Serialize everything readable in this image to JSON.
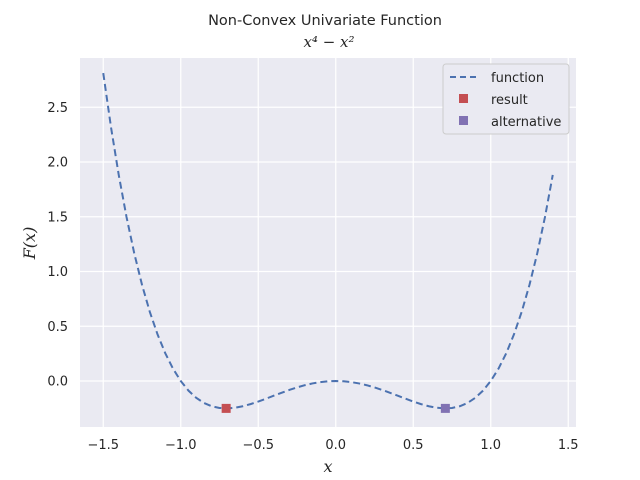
{
  "chart_data": {
    "type": "line",
    "title": "Non-Convex Univariate Function",
    "subtitle": "x⁴ − x²",
    "xlabel": "x",
    "ylabel": "F(x)",
    "xlim": [
      -1.65,
      1.55
    ],
    "ylim": [
      -0.42,
      2.95
    ],
    "xticks": [
      -1.5,
      -1.0,
      -0.5,
      0.0,
      0.5,
      1.0,
      1.5
    ],
    "xtick_labels": [
      "−1.5",
      "−1.0",
      "−0.5",
      "0.0",
      "0.5",
      "1.0",
      "1.5"
    ],
    "yticks": [
      0.0,
      0.5,
      1.0,
      1.5,
      2.0,
      2.5
    ],
    "ytick_labels": [
      "0.0",
      "0.5",
      "1.0",
      "1.5",
      "2.0",
      "2.5"
    ],
    "grid": true,
    "legend_position": "top-right",
    "series": [
      {
        "name": "function",
        "style": "dashed-line",
        "color": "#4c72b0",
        "x": [
          -1.5,
          -1.45,
          -1.4,
          -1.35,
          -1.3,
          -1.25,
          -1.2,
          -1.15,
          -1.1,
          -1.05,
          -1.0,
          -0.95,
          -0.9,
          -0.85,
          -0.8,
          -0.75,
          -0.7,
          -0.65,
          -0.6,
          -0.55,
          -0.5,
          -0.45,
          -0.4,
          -0.35,
          -0.3,
          -0.25,
          -0.2,
          -0.15,
          -0.1,
          -0.05,
          0.0,
          0.05,
          0.1,
          0.15,
          0.2,
          0.25,
          0.3,
          0.35,
          0.4,
          0.45,
          0.5,
          0.55,
          0.6,
          0.65,
          0.7,
          0.75,
          0.8,
          0.85,
          0.9,
          0.95,
          1.0,
          1.05,
          1.1,
          1.15,
          1.2,
          1.25,
          1.3,
          1.35,
          1.4
        ],
        "y": [
          2.8125,
          2.318,
          1.8816,
          1.4988,
          1.1661,
          0.8789,
          0.6336,
          0.4265,
          0.2541,
          0.113,
          0.0,
          -0.088,
          -0.1539,
          -0.2006,
          -0.2304,
          -0.2461,
          -0.2499,
          -0.244,
          -0.2304,
          -0.211,
          -0.1875,
          -0.1615,
          -0.1344,
          -0.1075,
          -0.0819,
          -0.0586,
          -0.0384,
          -0.022,
          -0.0099,
          -0.0025,
          0.0,
          -0.0025,
          -0.0099,
          -0.022,
          -0.0384,
          -0.0586,
          -0.0819,
          -0.1075,
          -0.1344,
          -0.1615,
          -0.1875,
          -0.211,
          -0.2304,
          -0.244,
          -0.2499,
          -0.2461,
          -0.2304,
          -0.2006,
          -0.1539,
          -0.088,
          0.0,
          0.113,
          0.2541,
          0.4265,
          0.6336,
          0.8789,
          1.1661,
          1.4988,
          1.8816
        ]
      },
      {
        "name": "result",
        "style": "square-marker",
        "color": "#c44e52",
        "x": [
          -0.7071
        ],
        "y": [
          -0.25
        ]
      },
      {
        "name": "alternative",
        "style": "square-marker",
        "color": "#8172b3",
        "x": [
          0.7071
        ],
        "y": [
          -0.25
        ]
      }
    ],
    "colors": {
      "plot_background": "#eaeaf2",
      "grid": "#ffffff",
      "text": "#262626"
    }
  }
}
